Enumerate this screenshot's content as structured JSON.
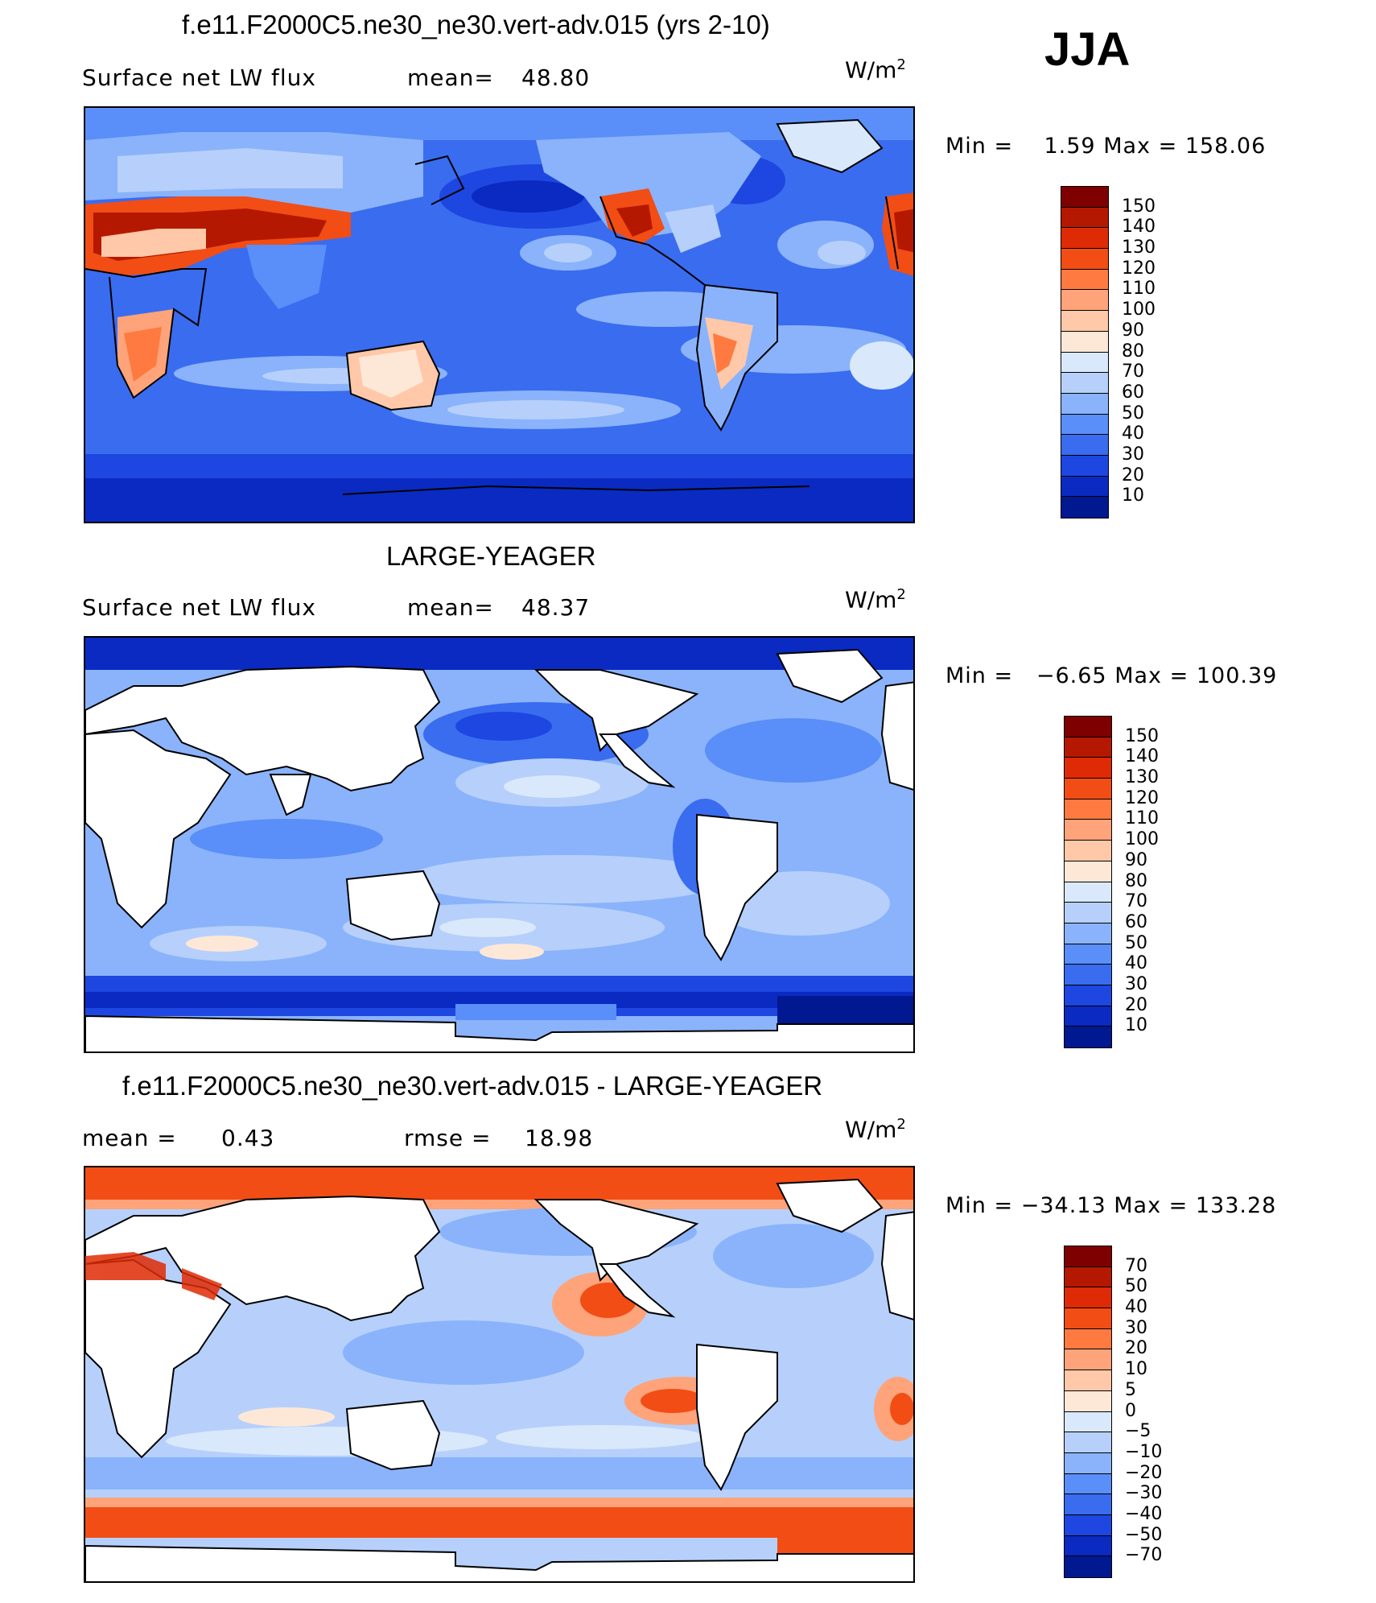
{
  "season": "JJA",
  "panels": [
    {
      "title": "f.e11.F2000C5.ne30_ne30.vert-adv.015 (yrs 2-10)",
      "left_label": "Surface net LW flux",
      "mid_label": "mean=",
      "mid_value": "48.80",
      "units_base": "W/m",
      "units_sup": "2",
      "min_label": "Min =",
      "min_value": "1.59",
      "max_label": "Max =",
      "max_value": "158.06",
      "colorbar": {
        "labels": [
          "150",
          "140",
          "130",
          "120",
          "110",
          "100",
          "90",
          "80",
          "70",
          "60",
          "50",
          "40",
          "30",
          "20",
          "10"
        ],
        "colors": [
          "#7f0000",
          "#b51800",
          "#df2b05",
          "#f24d15",
          "#ff7a40",
          "#ffa37a",
          "#ffc8a8",
          "#fde8d8",
          "#d9e9fb",
          "#b6d0fb",
          "#8ab3fb",
          "#5a8ef8",
          "#3a6cf0",
          "#1d47e0",
          "#0a2ac2",
          "#001890"
        ]
      }
    },
    {
      "title": "LARGE-YEAGER",
      "left_label": "Surface net LW flux",
      "mid_label": "mean=",
      "mid_value": "48.37",
      "units_base": "W/m",
      "units_sup": "2",
      "min_label": "Min =",
      "min_value": "−6.65",
      "max_label": "Max =",
      "max_value": "100.39",
      "colorbar": {
        "labels": [
          "150",
          "140",
          "130",
          "120",
          "110",
          "100",
          "90",
          "80",
          "70",
          "60",
          "50",
          "40",
          "30",
          "20",
          "10"
        ],
        "colors": [
          "#7f0000",
          "#b51800",
          "#df2b05",
          "#f24d15",
          "#ff7a40",
          "#ffa37a",
          "#ffc8a8",
          "#fde8d8",
          "#d9e9fb",
          "#b6d0fb",
          "#8ab3fb",
          "#5a8ef8",
          "#3a6cf0",
          "#1d47e0",
          "#0a2ac2",
          "#001890"
        ]
      }
    },
    {
      "title": "f.e11.F2000C5.ne30_ne30.vert-adv.015 - LARGE-YEAGER",
      "left_label": "mean =",
      "left_value": "0.43",
      "mid_label": "rmse =",
      "mid_value": "18.98",
      "units_base": "W/m",
      "units_sup": "2",
      "min_label": "Min =",
      "min_value": "−34.13",
      "max_label": "Max =",
      "max_value": "133.28",
      "colorbar": {
        "labels": [
          "70",
          "50",
          "40",
          "30",
          "20",
          "10",
          "5",
          "0",
          "−5",
          "−10",
          "−20",
          "−30",
          "−40",
          "−50",
          "−70"
        ],
        "colors": [
          "#7f0000",
          "#b51800",
          "#df2b05",
          "#f24d15",
          "#ff7a40",
          "#ffa37a",
          "#ffc8a8",
          "#fde8d8",
          "#d9e9fb",
          "#b6d0fb",
          "#8ab3fb",
          "#5a8ef8",
          "#3a6cf0",
          "#1d47e0",
          "#0a2ac2",
          "#001890"
        ]
      }
    }
  ]
}
